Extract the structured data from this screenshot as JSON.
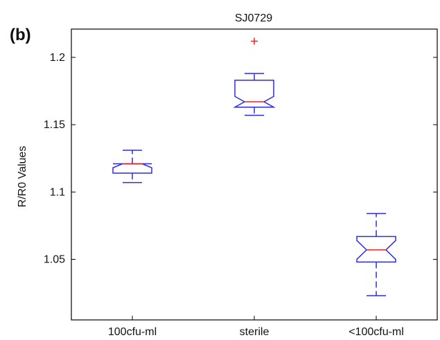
{
  "panel_label": "(b)",
  "colors": {
    "box": "#2a2ae0",
    "median": "#ff1a1a",
    "outlier": "#ff1a1a",
    "axis": "#000000"
  },
  "chart_data": {
    "type": "box",
    "title": "SJ0729",
    "xlabel": "",
    "ylabel": "R/R0 Values",
    "ylim": [
      1.005,
      1.221
    ],
    "yticks": [
      1.05,
      1.1,
      1.15,
      1.2
    ],
    "ytick_labels": [
      "1.05",
      "1.1",
      "1.15",
      "1.2"
    ],
    "grid": false,
    "categories": [
      "100cfu-ml",
      "sterile",
      "<100cfu-ml"
    ],
    "boxes": [
      {
        "whisker_low": 1.107,
        "q1": 1.114,
        "median": 1.121,
        "q3": 1.121,
        "whisker_high": 1.131,
        "notch_low": 1.118,
        "notch_high": 1.124,
        "outliers": []
      },
      {
        "whisker_low": 1.157,
        "q1": 1.163,
        "median": 1.167,
        "q3": 1.183,
        "whisker_high": 1.188,
        "notch_low": 1.162,
        "notch_high": 1.171,
        "outliers": [
          1.212
        ]
      },
      {
        "whisker_low": 1.023,
        "q1": 1.048,
        "median": 1.057,
        "q3": 1.067,
        "whisker_high": 1.084,
        "notch_low": 1.05,
        "notch_high": 1.064,
        "outliers": []
      }
    ]
  }
}
